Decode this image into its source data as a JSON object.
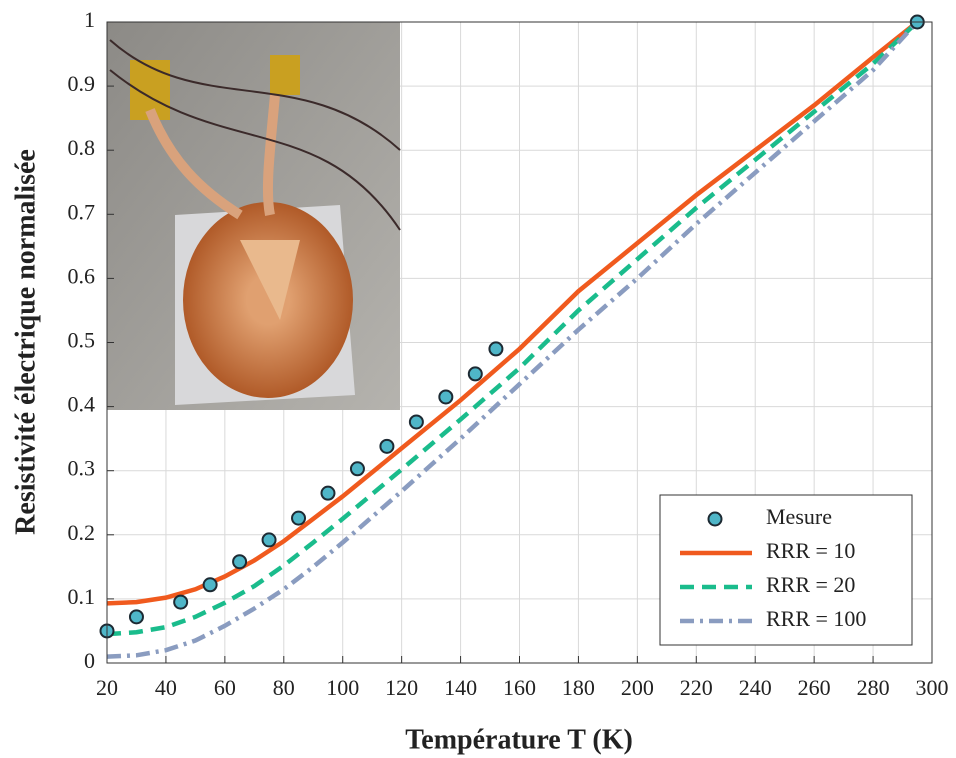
{
  "chart_data": {
    "type": "line",
    "x_label": "Température T (K)",
    "y_label": "Resistivité électrique normalisée",
    "xlim": [
      20,
      300
    ],
    "ylim": [
      0,
      1
    ],
    "xticks": [
      20,
      40,
      60,
      80,
      100,
      120,
      140,
      160,
      180,
      200,
      220,
      240,
      260,
      280,
      300
    ],
    "yticks": [
      0,
      0.1,
      0.2,
      0.3,
      0.4,
      0.5,
      0.6,
      0.7,
      0.8,
      0.9,
      1
    ],
    "grid": true,
    "legend": "lower right",
    "x": [
      20,
      30,
      40,
      50,
      60,
      70,
      80,
      90,
      100,
      120,
      140,
      160,
      180,
      200,
      220,
      240,
      260,
      280,
      295
    ],
    "series": [
      {
        "name": "Mesure",
        "type": "scatter",
        "color": "#4fb6c8",
        "x": [
          20,
          30,
          45,
          55,
          65,
          75,
          85,
          95,
          105,
          115,
          125,
          135,
          145,
          152,
          295
        ],
        "values": [
          0.05,
          0.072,
          0.095,
          0.122,
          0.158,
          0.192,
          0.226,
          0.265,
          0.303,
          0.338,
          0.376,
          0.415,
          0.451,
          0.49,
          1.0
        ]
      },
      {
        "name": "RRR = 10",
        "type": "line",
        "color": "#f05a1e",
        "dash": "solid",
        "values": [
          0.093,
          0.095,
          0.102,
          0.115,
          0.135,
          0.16,
          0.19,
          0.225,
          0.26,
          0.335,
          0.41,
          0.49,
          0.58,
          0.655,
          0.73,
          0.8,
          0.87,
          0.945,
          1.0
        ]
      },
      {
        "name": "RRR = 20",
        "type": "line",
        "color": "#1abc8c",
        "dash": "dashed",
        "values": [
          0.045,
          0.048,
          0.056,
          0.072,
          0.094,
          0.12,
          0.152,
          0.188,
          0.225,
          0.302,
          0.38,
          0.46,
          0.55,
          0.63,
          0.71,
          0.785,
          0.86,
          0.935,
          1.0
        ]
      },
      {
        "name": "RRR = 100",
        "type": "line",
        "color": "#8a9cc0",
        "dash": "dashdot",
        "values": [
          0.01,
          0.012,
          0.02,
          0.035,
          0.058,
          0.085,
          0.115,
          0.15,
          0.188,
          0.268,
          0.35,
          0.435,
          0.52,
          0.6,
          0.685,
          0.765,
          0.845,
          0.925,
          1.0
        ]
      }
    ]
  }
}
